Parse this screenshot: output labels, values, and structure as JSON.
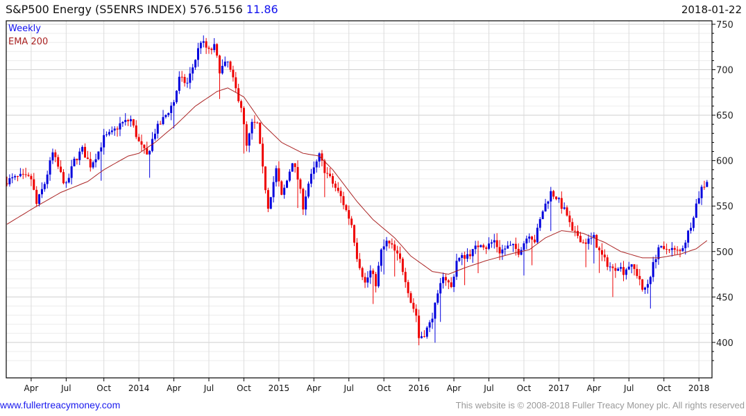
{
  "header": {
    "title": "S&P500 Energy (S5ENRS INDEX) 576.5156",
    "change": "11.86",
    "date": "2018-01-22"
  },
  "footer": {
    "site": "www.fullertreacymoney.com",
    "copyright": "This website is © 2008-2018 Fuller Treacy Money plc. All rights reserved"
  },
  "chart_data": {
    "type": "candlestick",
    "title": "S&P500 Energy (S5ENRS INDEX)",
    "legend": [
      "Weekly",
      "EMA 200"
    ],
    "legend_placement": "top-left",
    "colors": {
      "up": "#0000dd",
      "down": "#ee0000",
      "ema": "#aa2222"
    },
    "ylim": [
      375,
      752
    ],
    "y_ticks": [
      750,
      700,
      650,
      600,
      550,
      500,
      450,
      400
    ],
    "x_ticks": [
      {
        "label": "Apr",
        "week": 9
      },
      {
        "label": "Jul",
        "week": 22
      },
      {
        "label": "Oct",
        "week": 36
      },
      {
        "label": "2014",
        "week": 49
      },
      {
        "label": "Apr",
        "week": 62
      },
      {
        "label": "Jul",
        "week": 75
      },
      {
        "label": "Oct",
        "week": 88
      },
      {
        "label": "2015",
        "week": 101
      },
      {
        "label": "Apr",
        "week": 114
      },
      {
        "label": "Jul",
        "week": 127
      },
      {
        "label": "Oct",
        "week": 140
      },
      {
        "label": "2016",
        "week": 153
      },
      {
        "label": "Apr",
        "week": 166
      },
      {
        "label": "Jul",
        "week": 179
      },
      {
        "label": "Oct",
        "week": 192
      },
      {
        "label": "2017",
        "week": 205
      },
      {
        "label": "Apr",
        "week": 218
      },
      {
        "label": "Jul",
        "week": 231
      },
      {
        "label": "Oct",
        "week": 244
      },
      {
        "label": "2018",
        "week": 257
      }
    ],
    "weeks": 261,
    "close_path": [
      [
        0,
        578
      ],
      [
        5,
        582
      ],
      [
        9,
        580
      ],
      [
        11,
        552
      ],
      [
        14,
        575
      ],
      [
        17,
        608
      ],
      [
        20,
        585
      ],
      [
        22,
        572
      ],
      [
        25,
        600
      ],
      [
        28,
        612
      ],
      [
        31,
        595
      ],
      [
        34,
        610
      ],
      [
        36,
        625
      ],
      [
        39,
        630
      ],
      [
        42,
        640
      ],
      [
        46,
        645
      ],
      [
        49,
        620
      ],
      [
        52,
        605
      ],
      [
        55,
        632
      ],
      [
        59,
        650
      ],
      [
        62,
        665
      ],
      [
        64,
        690
      ],
      [
        67,
        685
      ],
      [
        70,
        712
      ],
      [
        72,
        732
      ],
      [
        75,
        720
      ],
      [
        77,
        725
      ],
      [
        79,
        700
      ],
      [
        82,
        708
      ],
      [
        85,
        678
      ],
      [
        87,
        660
      ],
      [
        89,
        615
      ],
      [
        91,
        640
      ],
      [
        93,
        640
      ],
      [
        95,
        590
      ],
      [
        97,
        550
      ],
      [
        100,
        590
      ],
      [
        102,
        560
      ],
      [
        104,
        578
      ],
      [
        106,
        600
      ],
      [
        108,
        580
      ],
      [
        110,
        550
      ],
      [
        112,
        575
      ],
      [
        114,
        590
      ],
      [
        116,
        605
      ],
      [
        118,
        590
      ],
      [
        120,
        580
      ],
      [
        122,
        570
      ],
      [
        124,
        560
      ],
      [
        126,
        545
      ],
      [
        128,
        530
      ],
      [
        130,
        495
      ],
      [
        133,
        465
      ],
      [
        135,
        478
      ],
      [
        137,
        465
      ],
      [
        139,
        500
      ],
      [
        141,
        510
      ],
      [
        143,
        505
      ],
      [
        146,
        490
      ],
      [
        148,
        470
      ],
      [
        150,
        445
      ],
      [
        152,
        430
      ],
      [
        153,
        405
      ],
      [
        155,
        410
      ],
      [
        157,
        420
      ],
      [
        160,
        450
      ],
      [
        162,
        475
      ],
      [
        165,
        460
      ],
      [
        167,
        490
      ],
      [
        170,
        495
      ],
      [
        173,
        500
      ],
      [
        176,
        510
      ],
      [
        178,
        505
      ],
      [
        181,
        512
      ],
      [
        183,
        500
      ],
      [
        186,
        505
      ],
      [
        188,
        505
      ],
      [
        190,
        500
      ],
      [
        192,
        510
      ],
      [
        194,
        520
      ],
      [
        196,
        512
      ],
      [
        199,
        545
      ],
      [
        202,
        565
      ],
      [
        204,
        560
      ],
      [
        206,
        550
      ],
      [
        208,
        540
      ],
      [
        210,
        520
      ],
      [
        212,
        518
      ],
      [
        214,
        510
      ],
      [
        216,
        512
      ],
      [
        218,
        515
      ],
      [
        220,
        500
      ],
      [
        222,
        490
      ],
      [
        225,
        480
      ],
      [
        227,
        485
      ],
      [
        229,
        478
      ],
      [
        231,
        485
      ],
      [
        233,
        480
      ],
      [
        235,
        470
      ],
      [
        236,
        455
      ],
      [
        238,
        465
      ],
      [
        240,
        485
      ],
      [
        242,
        505
      ],
      [
        244,
        500
      ],
      [
        246,
        505
      ],
      [
        248,
        500
      ],
      [
        250,
        500
      ],
      [
        252,
        512
      ],
      [
        254,
        530
      ],
      [
        256,
        552
      ],
      [
        258,
        570
      ],
      [
        260,
        576.5
      ]
    ],
    "ema_path": [
      [
        0,
        530
      ],
      [
        10,
        548
      ],
      [
        20,
        565
      ],
      [
        30,
        577
      ],
      [
        36,
        590
      ],
      [
        45,
        605
      ],
      [
        49,
        608
      ],
      [
        55,
        620
      ],
      [
        63,
        640
      ],
      [
        70,
        660
      ],
      [
        78,
        676
      ],
      [
        82,
        680
      ],
      [
        88,
        670
      ],
      [
        95,
        640
      ],
      [
        102,
        620
      ],
      [
        110,
        608
      ],
      [
        116,
        605
      ],
      [
        121,
        590
      ],
      [
        130,
        555
      ],
      [
        136,
        535
      ],
      [
        144,
        515
      ],
      [
        150,
        495
      ],
      [
        158,
        478
      ],
      [
        164,
        475
      ],
      [
        170,
        482
      ],
      [
        178,
        490
      ],
      [
        188,
        498
      ],
      [
        194,
        502
      ],
      [
        200,
        515
      ],
      [
        206,
        523
      ],
      [
        214,
        520
      ],
      [
        222,
        510
      ],
      [
        228,
        500
      ],
      [
        236,
        493
      ],
      [
        242,
        493
      ],
      [
        250,
        497
      ],
      [
        256,
        503
      ],
      [
        260,
        512
      ]
    ]
  }
}
